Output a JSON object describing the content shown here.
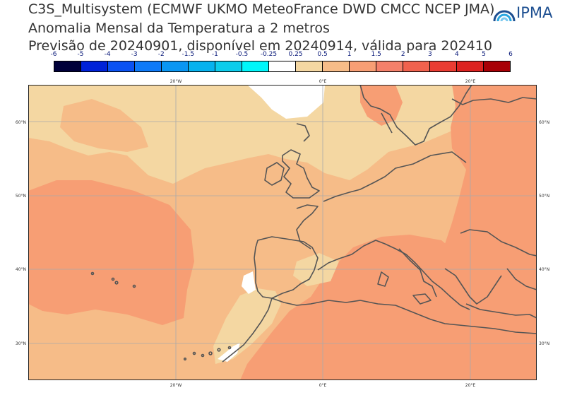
{
  "title": {
    "line1": "C3S_Multisystem (ECMWF UKMO MeteoFrance DWD CMCC NCEP JMA)",
    "line2": "Anomalia Mensal da Temperatura a 2 metros",
    "line3": "Previsão de 20240901, disponível em 20240914, válida para 202410"
  },
  "logo": {
    "text": "IPMA"
  },
  "colorbar": {
    "labels": [
      "-6",
      "-5",
      "-4",
      "-3",
      "-2",
      "-1.5",
      "-1",
      "-0.5",
      "-0.25",
      "0.25",
      "0.5",
      "1",
      "1.5",
      "2",
      "3",
      "4",
      "5",
      "6"
    ],
    "colors": [
      "#00003a",
      "#0022d8",
      "#0a52f2",
      "#0e7af8",
      "#0a96f2",
      "#06b2ee",
      "#0cccec",
      "#00f6fa",
      "#ffffff",
      "#f4d7a2",
      "#f6bc88",
      "#f79e74",
      "#f4806a",
      "#f0624e",
      "#ea3c32",
      "#dc2220",
      "#a80006"
    ]
  },
  "map": {
    "lon_labels": [
      "20°W",
      "0°E",
      "20°E"
    ],
    "lat_labels": [
      "60°N",
      "50°N",
      "40°N",
      "30°N"
    ],
    "colors": {
      "weak": "#f4d7a2",
      "moderate": "#f6bc88",
      "strong": "#f79e74",
      "neutral": "#ffffff",
      "coast": "#555555",
      "grid": "#aaaaaa"
    }
  }
}
